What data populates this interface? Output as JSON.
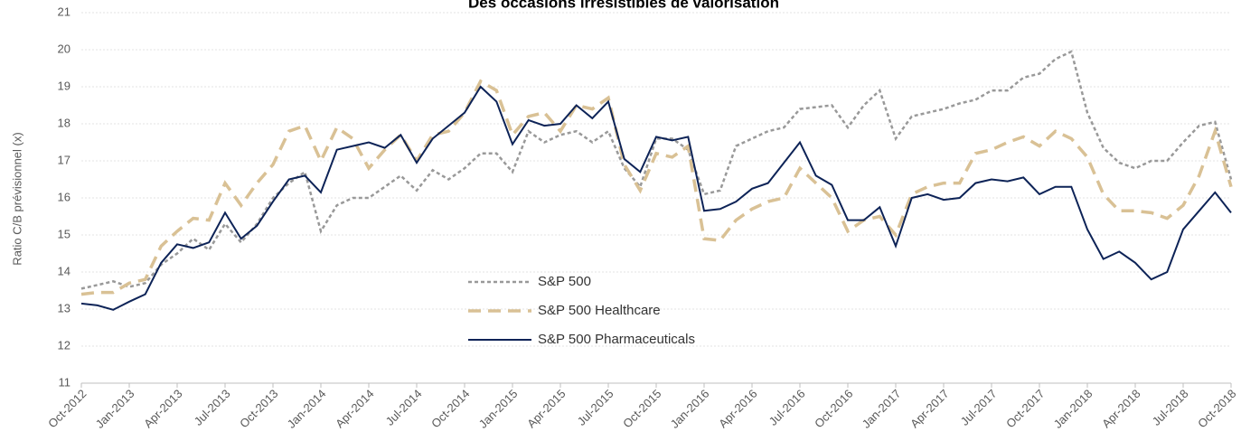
{
  "chart_data": {
    "type": "line",
    "title": "Des occasions irrésistibles de valorisation",
    "y_label": "Ratio C/B prévisionnel (x)",
    "categories": [
      "Oct-2012",
      null,
      null,
      "Jan-2013",
      null,
      null,
      "Apr-2013",
      null,
      null,
      "Jul-2013",
      null,
      null,
      "Oct-2013",
      null,
      null,
      "Jan-2014",
      null,
      null,
      "Apr-2014",
      null,
      null,
      "Jul-2014",
      null,
      null,
      "Oct-2014",
      null,
      null,
      "Jan-2015",
      null,
      null,
      "Apr-2015",
      null,
      null,
      "Jul-2015",
      null,
      null,
      "Oct-2015",
      null,
      null,
      "Jan-2016",
      null,
      null,
      "Apr-2016",
      null,
      null,
      "Jul-2016",
      null,
      null,
      "Oct-2016",
      null,
      null,
      "Jan-2017",
      null,
      null,
      "Apr-2017",
      null,
      null,
      "Jul-2017",
      null,
      null,
      "Oct-2017",
      null,
      null,
      "Jan-2018",
      null,
      null,
      "Apr-2018",
      null,
      null,
      "Jul-2018",
      null,
      null,
      "Oct-2018"
    ],
    "series": [
      {
        "name": "S&P 500",
        "color": "#999999",
        "style": "dotted",
        "values": [
          13.55,
          13.65,
          13.75,
          13.6,
          13.7,
          14.2,
          14.5,
          14.9,
          14.6,
          15.3,
          14.8,
          15.3,
          16.0,
          16.4,
          16.7,
          15.1,
          15.8,
          16.0,
          16.0,
          16.3,
          16.6,
          16.2,
          16.75,
          16.5,
          16.8,
          17.2,
          17.2,
          16.7,
          17.8,
          17.5,
          17.7,
          17.8,
          17.5,
          17.8,
          16.8,
          16.3,
          17.6,
          17.6,
          17.3,
          16.1,
          16.2,
          17.4,
          17.6,
          17.8,
          17.9,
          18.4,
          18.45,
          18.5,
          17.9,
          18.5,
          18.9,
          17.6,
          18.2,
          18.3,
          18.4,
          18.55,
          18.65,
          18.9,
          18.9,
          19.25,
          19.35,
          19.75,
          19.95,
          18.3,
          17.35,
          16.95,
          16.8,
          17.0,
          17.0,
          17.5,
          17.95,
          18.05,
          16.5
        ]
      },
      {
        "name": "S&P 500 Healthcare",
        "color": "#d9c195",
        "style": "dashed",
        "values": [
          13.4,
          13.45,
          13.45,
          13.7,
          13.8,
          14.7,
          15.1,
          15.45,
          15.4,
          16.4,
          15.8,
          16.4,
          16.9,
          17.8,
          17.95,
          17.0,
          17.9,
          17.6,
          16.8,
          17.3,
          17.7,
          17.0,
          17.7,
          17.8,
          18.3,
          19.15,
          18.9,
          17.7,
          18.2,
          18.3,
          17.8,
          18.5,
          18.4,
          18.7,
          16.9,
          16.2,
          17.2,
          17.1,
          17.4,
          14.9,
          14.85,
          15.4,
          15.7,
          15.9,
          16.0,
          16.8,
          16.4,
          16.0,
          15.1,
          15.4,
          15.5,
          15.0,
          16.1,
          16.3,
          16.4,
          16.4,
          17.2,
          17.3,
          17.5,
          17.65,
          17.4,
          17.8,
          17.6,
          17.1,
          16.1,
          15.65,
          15.65,
          15.6,
          15.45,
          15.8,
          16.6,
          17.8,
          16.3
        ]
      },
      {
        "name": "S&P 500 Pharmaceuticals",
        "color": "#0d2357",
        "style": "solid",
        "values": [
          13.15,
          13.1,
          12.98,
          13.2,
          13.4,
          14.25,
          14.75,
          14.65,
          14.8,
          15.6,
          14.9,
          15.25,
          15.9,
          16.5,
          16.6,
          16.15,
          17.3,
          17.4,
          17.5,
          17.35,
          17.7,
          16.95,
          17.6,
          17.95,
          18.3,
          19.0,
          18.6,
          17.45,
          18.1,
          17.95,
          18.0,
          18.5,
          18.15,
          18.6,
          17.05,
          16.7,
          17.65,
          17.55,
          17.65,
          15.65,
          15.7,
          15.9,
          16.25,
          16.4,
          16.95,
          17.5,
          16.6,
          16.35,
          15.4,
          15.4,
          15.75,
          14.7,
          16.0,
          16.1,
          15.95,
          16.0,
          16.4,
          16.5,
          16.45,
          16.55,
          16.1,
          16.3,
          16.3,
          15.15,
          14.35,
          14.55,
          14.25,
          13.8,
          14.0,
          15.15,
          15.65,
          16.15,
          15.6
        ]
      }
    ],
    "ylim": [
      11,
      21
    ],
    "yticks": [
      11,
      12,
      13,
      14,
      15,
      16,
      17,
      18,
      19,
      20,
      21
    ],
    "grid": true
  }
}
